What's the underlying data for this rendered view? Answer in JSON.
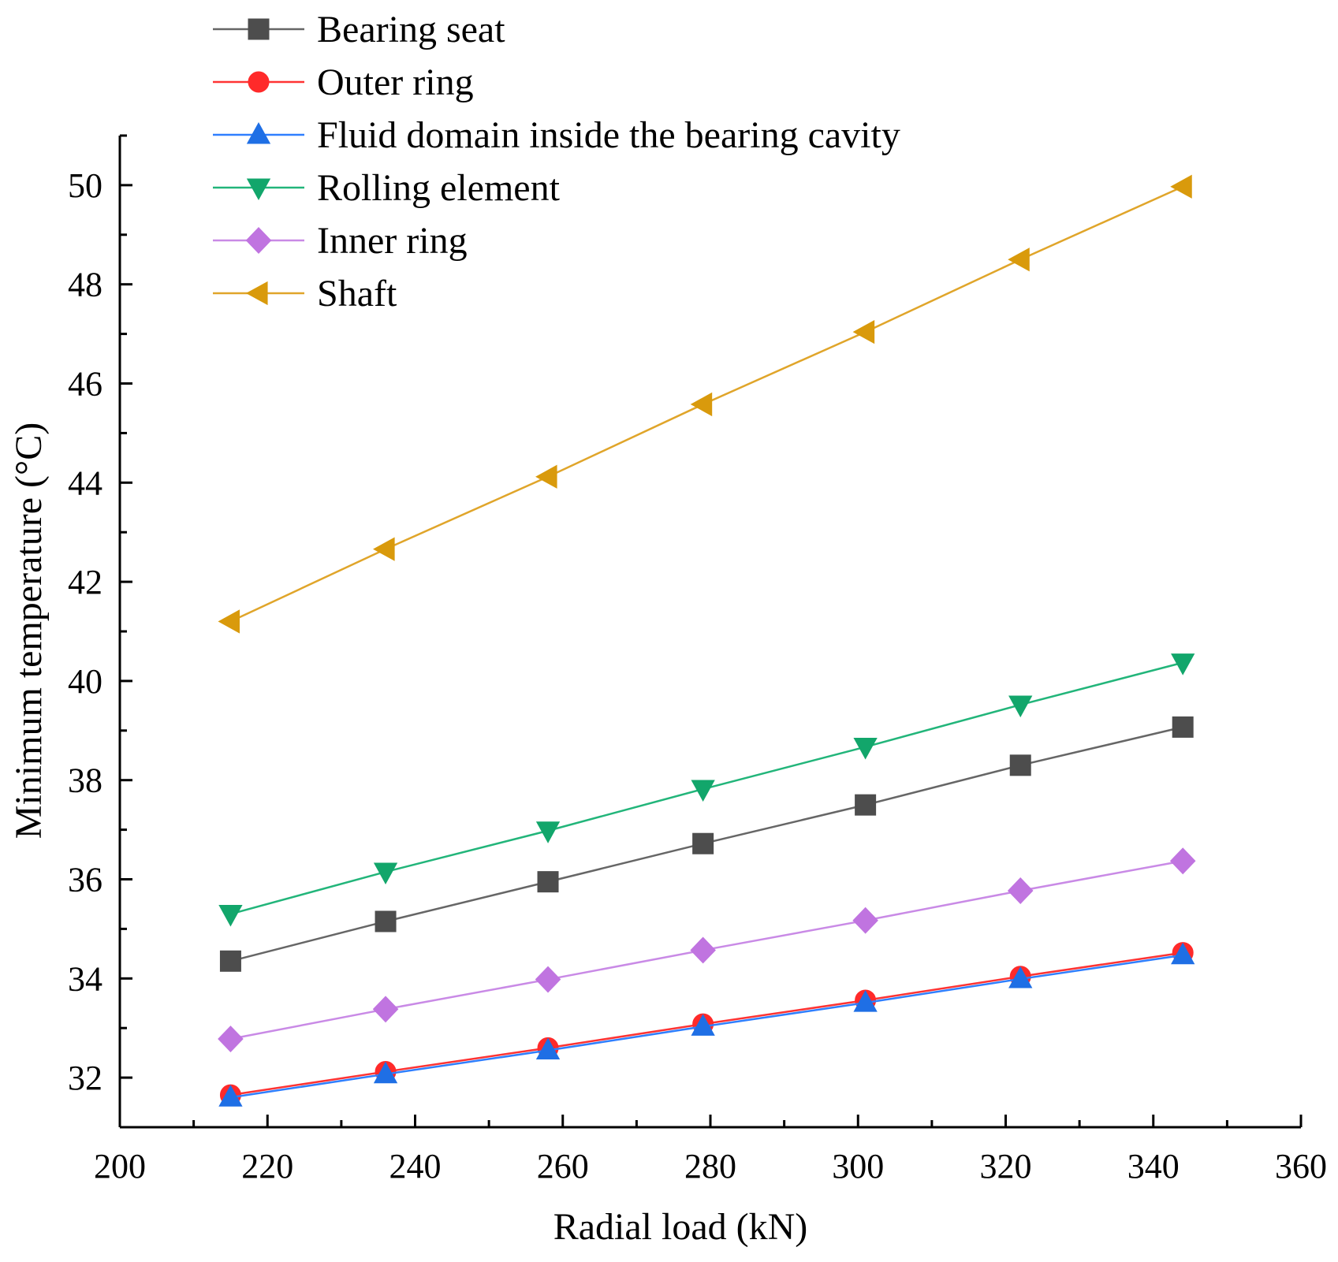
{
  "chart_data": {
    "type": "line",
    "title": "",
    "xlabel": "Radial load (kN)",
    "ylabel": "Minimum temperature (°C)",
    "xlim": [
      200,
      360
    ],
    "ylim": [
      31,
      51
    ],
    "xticks": [
      200,
      220,
      240,
      260,
      280,
      300,
      320,
      340,
      360
    ],
    "yticks": [
      32,
      34,
      36,
      38,
      40,
      42,
      44,
      46,
      48,
      50
    ],
    "x": [
      215,
      236,
      258,
      279,
      301,
      322,
      344
    ],
    "legend_position": "top-left",
    "series": [
      {
        "name": "Bearing seat",
        "marker": "square",
        "color": "#4d4d4d",
        "line_color": "#666666",
        "values": [
          34.35,
          35.15,
          35.95,
          36.72,
          37.5,
          38.3,
          39.07
        ]
      },
      {
        "name": "Outer ring",
        "marker": "circle",
        "color": "#ff2a2a",
        "line_color": "#ff3333",
        "values": [
          31.65,
          32.12,
          32.6,
          33.08,
          33.56,
          34.04,
          34.52
        ]
      },
      {
        "name": "Fluid domain inside the bearing cavity",
        "marker": "triangle-up",
        "color": "#1f6fe5",
        "line_color": "#2f7fff",
        "values": [
          31.6,
          32.07,
          32.55,
          33.03,
          33.51,
          33.99,
          34.47
        ]
      },
      {
        "name": "Rolling element",
        "marker": "triangle-down",
        "color": "#12a66b",
        "line_color": "#22b57a",
        "values": [
          35.3,
          36.15,
          36.98,
          37.82,
          38.67,
          39.52,
          40.37
        ]
      },
      {
        "name": "Inner ring",
        "marker": "diamond",
        "color": "#c074e0",
        "line_color": "#c98ae6",
        "values": [
          32.78,
          33.38,
          33.98,
          34.57,
          35.17,
          35.77,
          36.37
        ]
      },
      {
        "name": "Shaft",
        "marker": "triangle-left",
        "color": "#d99a0c",
        "line_color": "#e0a52a",
        "values": [
          41.2,
          42.66,
          44.12,
          45.58,
          47.04,
          48.5,
          49.97
        ]
      }
    ]
  }
}
